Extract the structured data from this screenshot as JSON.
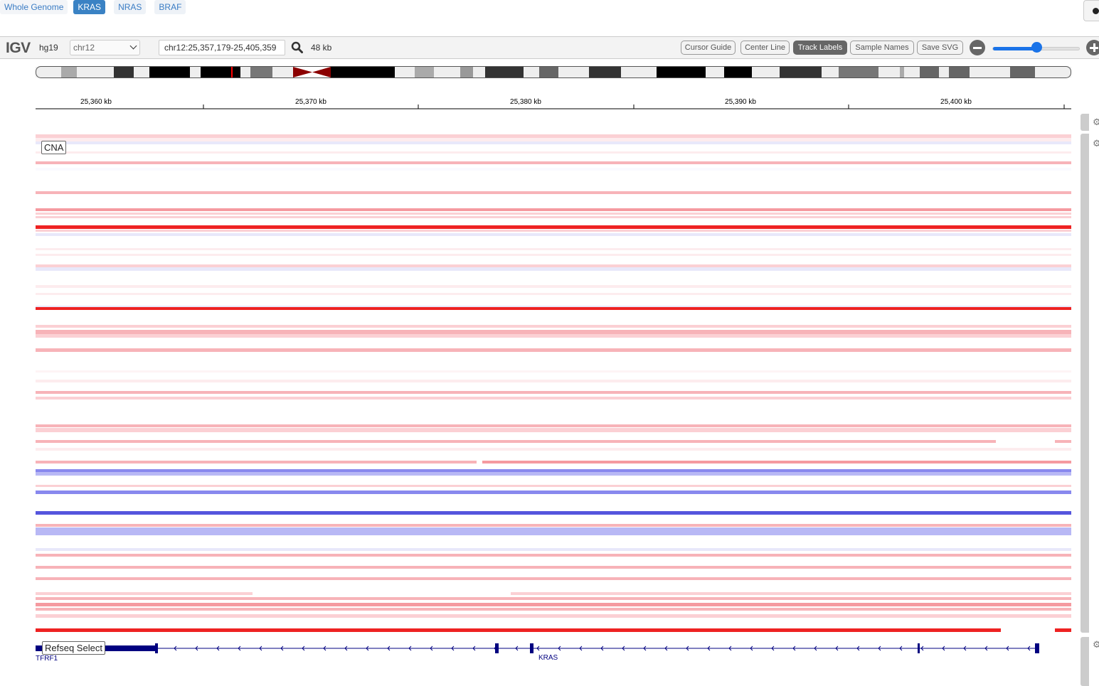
{
  "gene_buttons": [
    "Whole Genome",
    "KRAS",
    "NRAS",
    "BRAF"
  ],
  "navbar": {
    "logo": "IGV",
    "genome": "hg19",
    "chromosome": "chr12",
    "locus": "chr12:25,357,179-25,405,359",
    "window_size": "48 kb",
    "buttons": [
      "Cursor Guide",
      "Center Line",
      "Track Labels",
      "Sample Names",
      "Save SVG"
    ],
    "active_button": "Track Labels",
    "zoom_level": 0.5
  },
  "ruler": {
    "ticks": [
      "25,360 kb",
      "25,370 kb",
      "25,380 kb",
      "25,390 kb",
      "25,400 kb"
    ]
  },
  "tracks": {
    "cna_label": "CNA",
    "refseq_label": "Refseq Select",
    "genes": [
      "TFRF1",
      "KRAS"
    ]
  },
  "colors": {
    "accent": "#3a82c4",
    "gain": "#ff0000",
    "loss": "#0000ff",
    "gene": "#000080",
    "centromere": "#8b0000"
  }
}
